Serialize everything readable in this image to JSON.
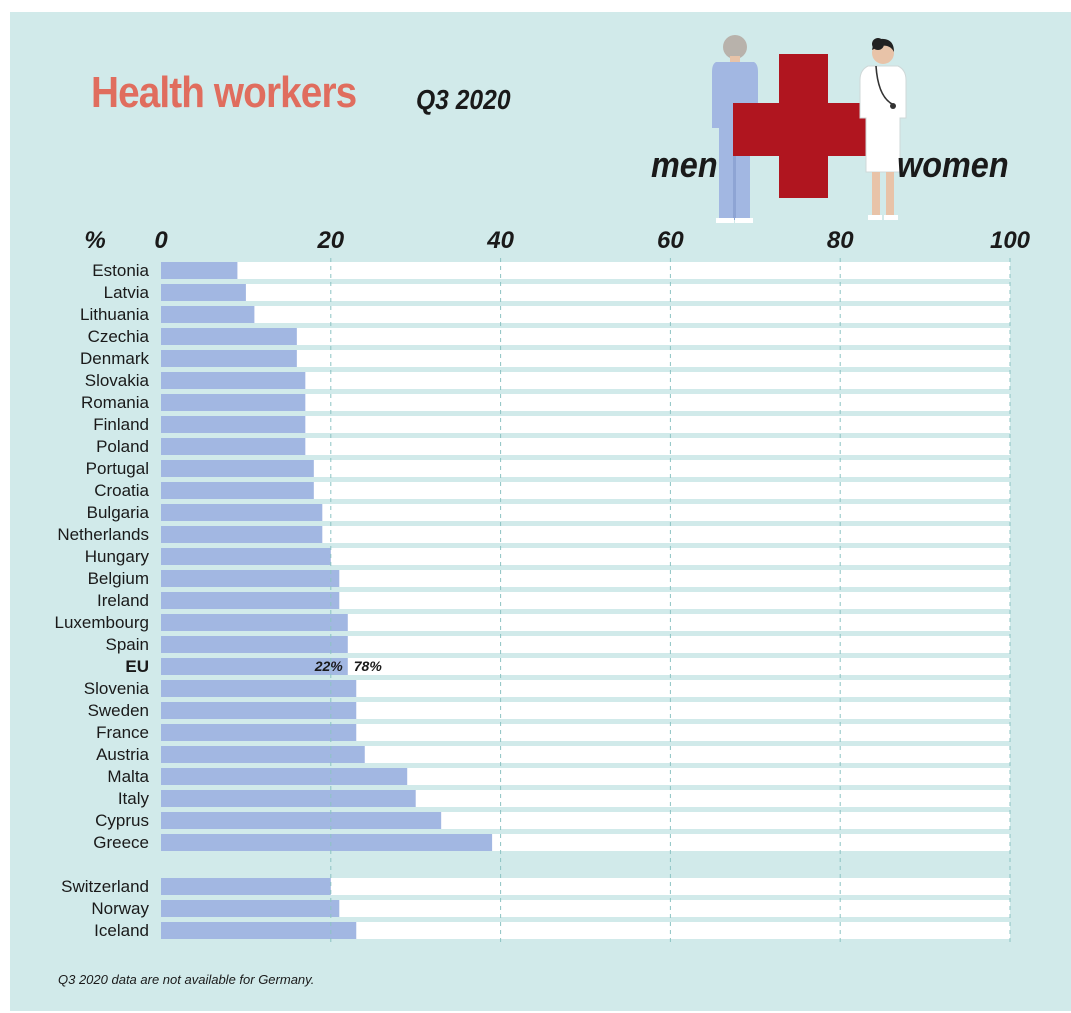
{
  "header": {
    "title": "Health workers",
    "subtitle": "Q3 2020",
    "legend_men": "men",
    "legend_women": "women"
  },
  "footnote": "Q3 2020 data are not available for Germany.",
  "colors": {
    "background": "#d1eaea",
    "men_bar": "#a2b7e2",
    "women_bar": "#ffffff",
    "title": "#e06d5e",
    "cross": "#b0151f"
  },
  "icons": [
    "male-health-worker-icon",
    "red-cross-icon",
    "female-doctor-icon"
  ],
  "chart_data": {
    "type": "bar",
    "orientation": "horizontal",
    "stacked": true,
    "ylabel_unit": "%",
    "xlim": [
      0,
      100
    ],
    "xticks": [
      0,
      20,
      40,
      60,
      80,
      100
    ],
    "grid": true,
    "series": [
      {
        "name": "men",
        "color": "#a2b7e2"
      },
      {
        "name": "women",
        "color": "#ffffff"
      }
    ],
    "groups": [
      {
        "categories": [
          "Estonia",
          "Latvia",
          "Lithuania",
          "Czechia",
          "Denmark",
          "Slovakia",
          "Romania",
          "Finland",
          "Poland",
          "Portugal",
          "Croatia",
          "Bulgaria",
          "Netherlands",
          "Hungary",
          "Belgium",
          "Ireland",
          "Luxembourg",
          "Spain",
          "EU",
          "Slovenia",
          "Sweden",
          "France",
          "Austria",
          "Malta",
          "Italy",
          "Cyprus",
          "Greece"
        ],
        "men": [
          9,
          10,
          11,
          16,
          16,
          17,
          17,
          17,
          17,
          18,
          18,
          19,
          19,
          20,
          21,
          21,
          22,
          22,
          22,
          23,
          23,
          23,
          24,
          29,
          30,
          33,
          39
        ]
      },
      {
        "categories": [
          "Switzerland",
          "Norway",
          "Iceland"
        ],
        "men": [
          20,
          21,
          23
        ]
      }
    ],
    "highlight": {
      "category": "EU",
      "men_label": "22%",
      "women_label": "78%"
    }
  }
}
